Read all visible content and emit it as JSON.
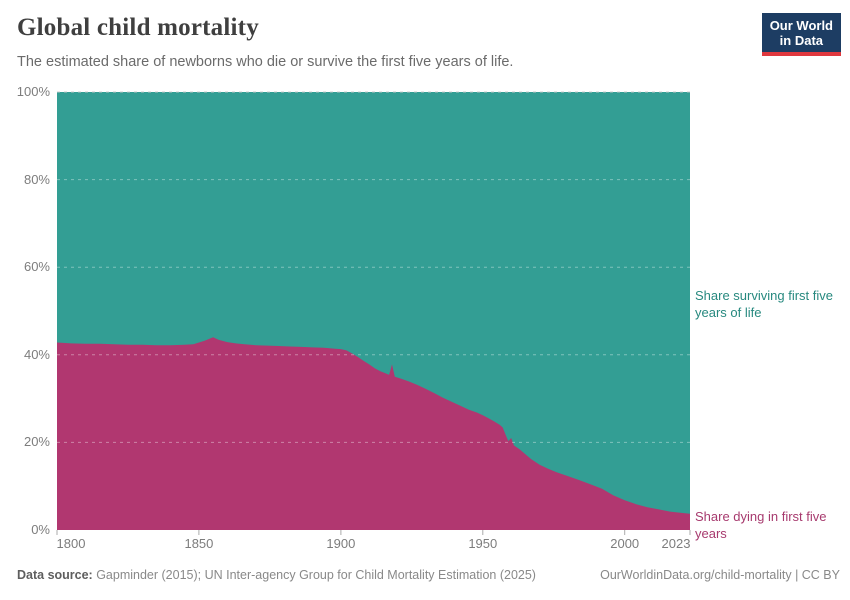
{
  "header": {
    "title": "Global child mortality",
    "subtitle": "The estimated share of newborns who die or survive the first five years of life.",
    "logo": {
      "line1": "Our World",
      "line2": "in Data",
      "bg": "#1d3d63",
      "accent": "#e0383e"
    }
  },
  "chart_data": {
    "type": "area",
    "stacked": true,
    "title": "Global child mortality",
    "y_unit": "%",
    "x_range": [
      1800,
      2023
    ],
    "y_range": [
      0,
      100
    ],
    "grid": true,
    "legend_position": "right-annotations",
    "x": [
      1800,
      1805,
      1810,
      1815,
      1820,
      1825,
      1830,
      1835,
      1840,
      1845,
      1848,
      1852,
      1855,
      1857,
      1860,
      1863,
      1866,
      1870,
      1874,
      1878,
      1882,
      1886,
      1890,
      1894,
      1898,
      1900,
      1902,
      1904,
      1906,
      1908,
      1910,
      1912,
      1914,
      1916,
      1917,
      1918,
      1919,
      1921,
      1924,
      1927,
      1930,
      1933,
      1936,
      1939,
      1942,
      1945,
      1948,
      1950,
      1952,
      1954,
      1956,
      1957,
      1958,
      1959,
      1960,
      1961,
      1963,
      1965,
      1967,
      1970,
      1973,
      1976,
      1980,
      1984,
      1988,
      1992,
      1996,
      2000,
      2004,
      2008,
      2012,
      2016,
      2020,
      2023
    ],
    "series": [
      {
        "name": "Share dying in first five years",
        "color": "#b13770",
        "label_color": "#a73a6e",
        "values": [
          42.8,
          42.6,
          42.5,
          42.5,
          42.4,
          42.3,
          42.3,
          42.2,
          42.2,
          42.3,
          42.4,
          43.2,
          44.0,
          43.4,
          42.9,
          42.6,
          42.4,
          42.2,
          42.1,
          42.0,
          41.9,
          41.8,
          41.7,
          41.6,
          41.4,
          41.3,
          41.0,
          40.3,
          39.5,
          38.6,
          37.8,
          36.9,
          36.2,
          35.7,
          35.4,
          37.8,
          35.0,
          34.6,
          33.9,
          33.1,
          32.2,
          31.2,
          30.2,
          29.3,
          28.4,
          27.5,
          26.8,
          26.2,
          25.5,
          24.8,
          24.0,
          23.4,
          21.8,
          20.3,
          21.0,
          19.3,
          18.4,
          17.3,
          16.2,
          14.9,
          14.0,
          13.2,
          12.3,
          11.4,
          10.4,
          9.4,
          7.9,
          6.8,
          5.9,
          5.2,
          4.7,
          4.2,
          3.9,
          3.7
        ]
      },
      {
        "name": "Share surviving first five years of life",
        "color": "#339e94",
        "label_color": "#27897f",
        "values": [
          57.2,
          57.4,
          57.5,
          57.5,
          57.6,
          57.7,
          57.7,
          57.8,
          57.8,
          57.7,
          57.6,
          56.8,
          56.0,
          56.6,
          57.1,
          57.4,
          57.6,
          57.8,
          57.9,
          58.0,
          58.1,
          58.2,
          58.3,
          58.4,
          58.6,
          58.7,
          59.0,
          59.7,
          60.5,
          61.4,
          62.2,
          63.1,
          63.8,
          64.3,
          64.6,
          62.2,
          65.0,
          65.4,
          66.1,
          66.9,
          67.8,
          68.8,
          69.8,
          70.7,
          71.6,
          72.5,
          73.2,
          73.8,
          74.5,
          75.2,
          76.0,
          76.6,
          78.2,
          79.7,
          79.0,
          80.7,
          81.6,
          82.7,
          83.8,
          85.1,
          86.0,
          86.8,
          87.7,
          88.6,
          89.6,
          90.6,
          92.1,
          93.2,
          94.1,
          94.8,
          95.3,
          95.8,
          96.1,
          96.3
        ]
      }
    ],
    "x_axis": {
      "ticks": [
        {
          "value": 1800,
          "label": "1800"
        },
        {
          "value": 1850,
          "label": "1850"
        },
        {
          "value": 1900,
          "label": "1900"
        },
        {
          "value": 1950,
          "label": "1950"
        },
        {
          "value": 2000,
          "label": "2000"
        },
        {
          "value": 2023,
          "label": "2023"
        }
      ]
    },
    "y_axis": {
      "tick_values": [
        0,
        20,
        40,
        60,
        80,
        100
      ],
      "tick_labels": [
        "0%",
        "20%",
        "40%",
        "60%",
        "80%",
        "100%"
      ],
      "gridline_values": [
        20,
        40,
        60,
        80,
        100
      ]
    }
  },
  "annotations": {
    "surviving": "Share surviving first five years of life",
    "dying": "Share dying in first five years"
  },
  "footer": {
    "source_label": "Data source:",
    "source_text": " Gapminder (2015); UN Inter-agency Group for Child Mortality Estimation (2025)",
    "link": "OurWorldinData.org/child-mortality | CC BY"
  }
}
